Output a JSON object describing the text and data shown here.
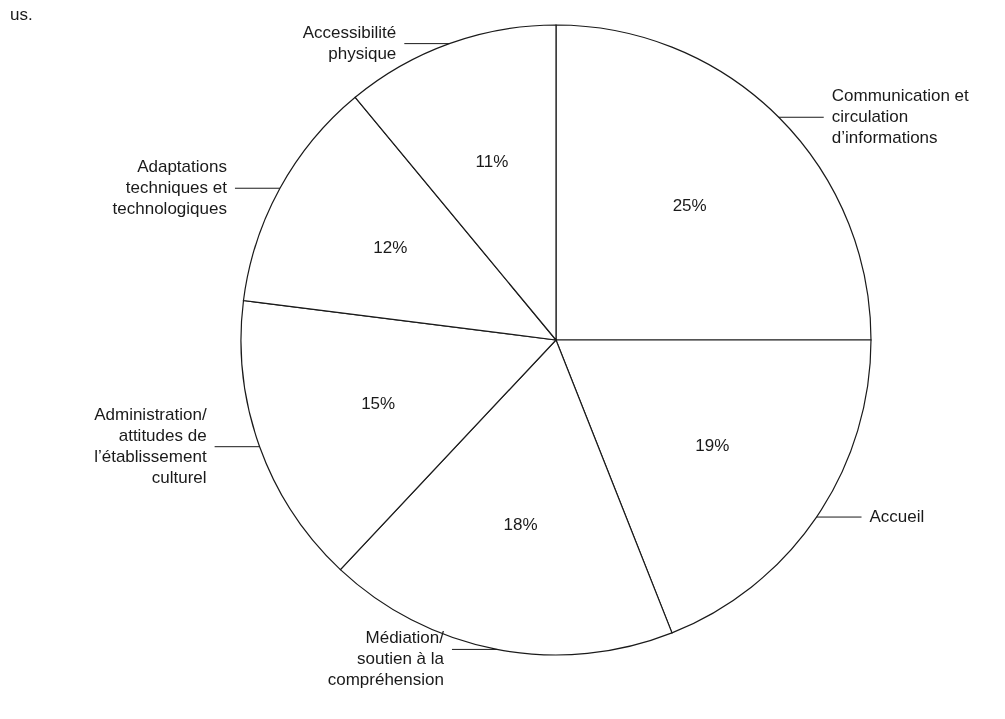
{
  "chart_data": {
    "type": "pie",
    "categories": [
      "Communication et circulation d’informations",
      "Accueil",
      "Médiation/ soutien à la compréhension",
      "Administration/ attitudes de l’établissement culturel",
      "Adaptations techniques et technologiques",
      "Accessibilité physique"
    ],
    "values": [
      25,
      19,
      18,
      15,
      12,
      11
    ],
    "value_labels": [
      "25%",
      "19%",
      "18%",
      "15%",
      "12%",
      "11%"
    ],
    "colors": [
      "#ffffff",
      "#ffffff",
      "#ffffff",
      "#ffffff",
      "#ffffff",
      "#ffffff"
    ],
    "annotations": [
      "us."
    ]
  }
}
